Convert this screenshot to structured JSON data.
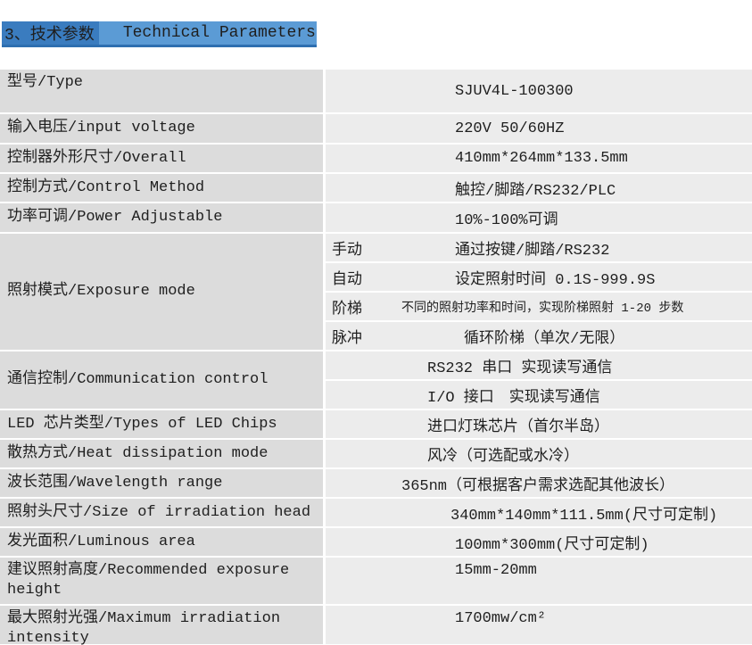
{
  "header": {
    "section_title_zh": "3、技术参数",
    "section_title_en": "Technical Parameters",
    "highlight_dark_color": "#3a7cbf",
    "highlight_light_color": "#5b9bd5"
  },
  "table": {
    "label_cell_color": "#dcdcdc",
    "value_cell_color": "#ececec",
    "rows": [
      {
        "label": "型号/Type",
        "value": "SJUV4L-100300"
      },
      {
        "label": "输入电压/input voltage",
        "value": "220V 50/60HZ"
      },
      {
        "label": "控制器外形尺寸/Overall",
        "value": "410mm*264mm*133.5mm"
      },
      {
        "label": "控制方式/Control Method",
        "value": "触控/脚踏/RS232/PLC"
      },
      {
        "label": "功率可调/Power Adjustable",
        "value": "10%-100%可调"
      },
      {
        "label": "照射模式/Exposure mode",
        "sub_rows": [
          {
            "mode": "手动",
            "value": "通过按键/脚踏/RS232"
          },
          {
            "mode": "自动",
            "value": "设定照射时间 0.1S-999.9S"
          },
          {
            "mode": "阶梯",
            "value": "不同的照射功率和时间，实现阶梯照射 1-20 步数"
          },
          {
            "mode": "脉冲",
            "value": "循环阶梯（单次/无限）"
          }
        ]
      },
      {
        "label": "通信控制/Communication control",
        "sub_values": [
          {
            "value": "RS232 串口 实现读写通信"
          },
          {
            "value": "I/O 接口　实现读写通信"
          }
        ]
      },
      {
        "label": "LED 芯片类型/Types of LED Chips",
        "value": "进口灯珠芯片（首尔半岛）"
      },
      {
        "label": "散热方式/Heat dissipation mode",
        "value": "风冷（可选配或水冷）"
      },
      {
        "label": "波长范围/Wavelength range",
        "value": "365nm（可根据客户需求选配其他波长）"
      },
      {
        "label": "照射头尺寸/Size of irradiation head",
        "value": "340mm*140mm*111.5mm(尺寸可定制)"
      },
      {
        "label": "发光面积/Luminous area",
        "value": "100mm*300mm(尺寸可定制)"
      },
      {
        "label": "建议照射高度/Recommended exposure height",
        "value": "15mm-20mm"
      },
      {
        "label": "最大照射光强/Maximum irradiation intensity",
        "value": "1700mw/cm²"
      }
    ]
  }
}
